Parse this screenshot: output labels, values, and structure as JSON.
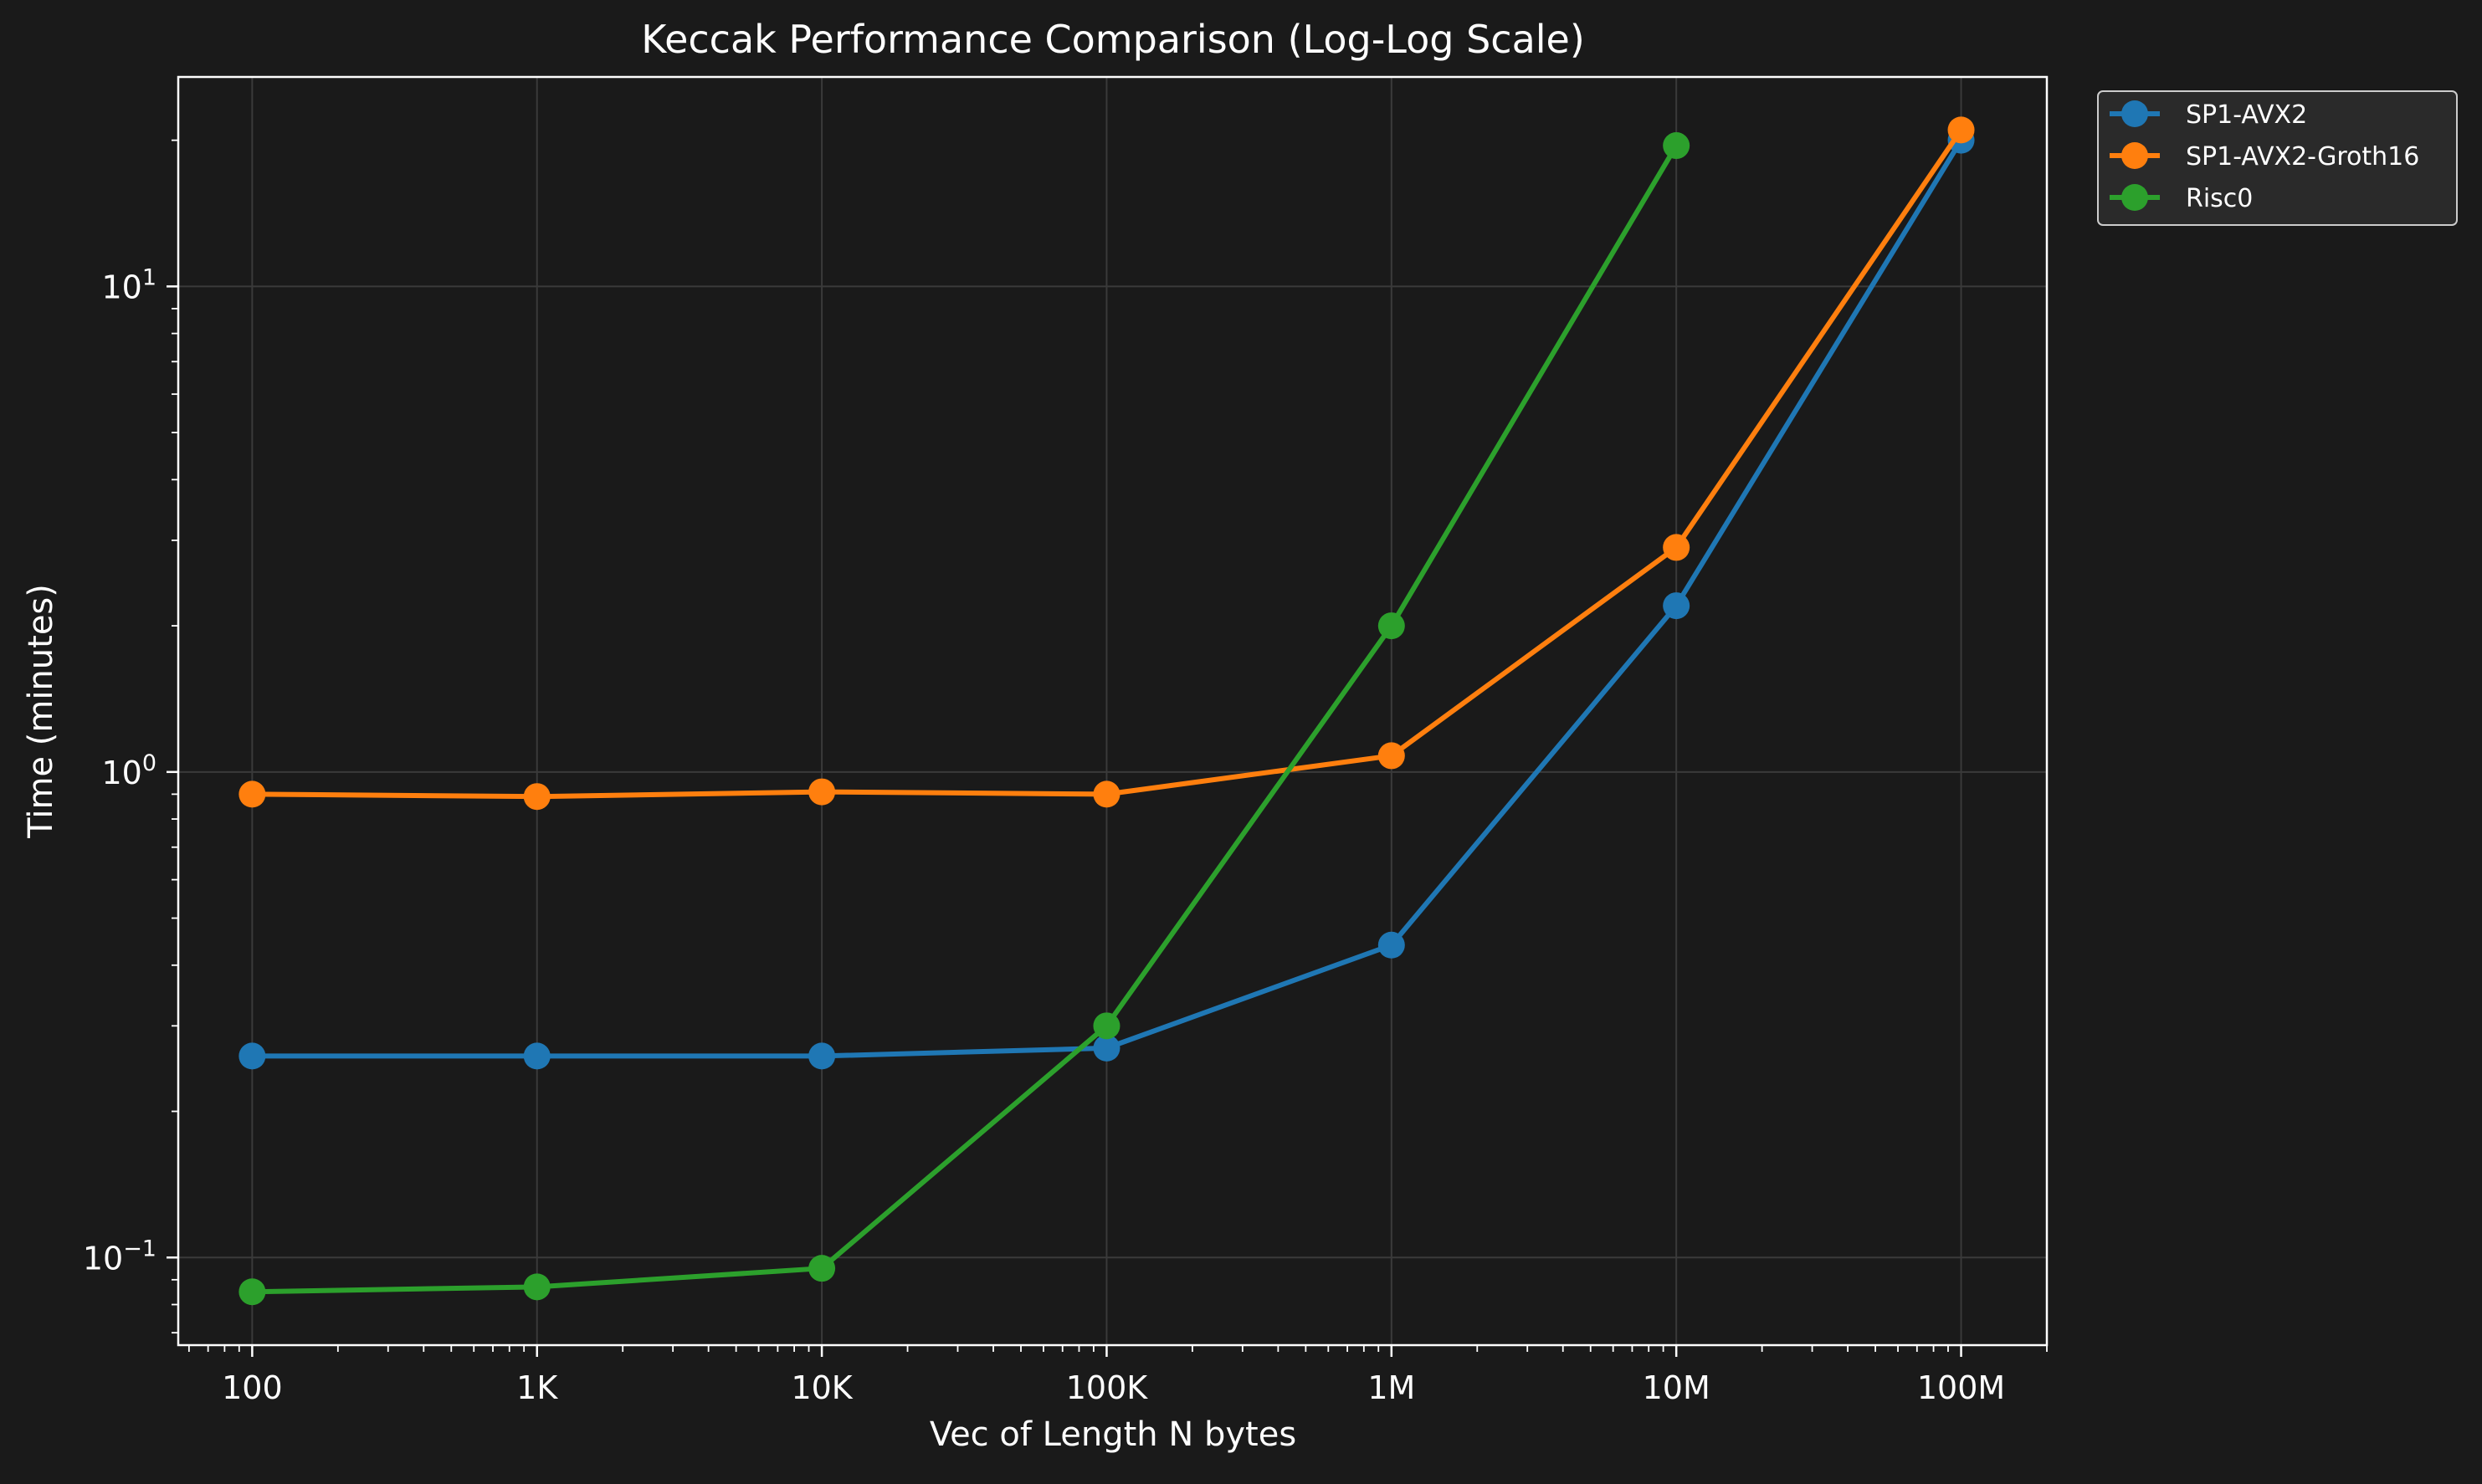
{
  "chart_data": {
    "type": "line",
    "title": "Keccak Performance Comparison (Log-Log Scale)",
    "xlabel": "Vec of Length N bytes",
    "ylabel": "Time (minutes)",
    "x_scale": "log",
    "y_scale": "log",
    "grid": true,
    "legend_position": "outside-top-right",
    "xlim": [
      55,
      200000000
    ],
    "ylim": [
      0.066,
      27
    ],
    "x_ticks": [
      {
        "value": 100,
        "label": "100"
      },
      {
        "value": 1000,
        "label": "1K"
      },
      {
        "value": 10000,
        "label": "10K"
      },
      {
        "value": 100000,
        "label": "100K"
      },
      {
        "value": 1000000,
        "label": "1M"
      },
      {
        "value": 10000000,
        "label": "10M"
      },
      {
        "value": 100000000,
        "label": "100M"
      }
    ],
    "y_ticks": [
      {
        "value": 0.1,
        "base": "10",
        "exp": "−1"
      },
      {
        "value": 1,
        "base": "10",
        "exp": "0"
      },
      {
        "value": 10,
        "base": "10",
        "exp": "1"
      }
    ],
    "x": [
      100,
      1000,
      10000,
      100000,
      1000000,
      10000000,
      100000000
    ],
    "series": [
      {
        "name": "SP1-AVX2",
        "color": "#1f77b4",
        "values": [
          0.26,
          0.26,
          0.26,
          0.27,
          0.44,
          2.2,
          20
        ]
      },
      {
        "name": "SP1-AVX2-Groth16",
        "color": "#ff7f0e",
        "values": [
          0.9,
          0.89,
          0.91,
          0.9,
          1.08,
          2.9,
          21
        ]
      },
      {
        "name": "Risc0",
        "color": "#2ca02c",
        "values": [
          0.085,
          0.087,
          0.095,
          0.3,
          2.0,
          19.5,
          null
        ]
      }
    ]
  }
}
